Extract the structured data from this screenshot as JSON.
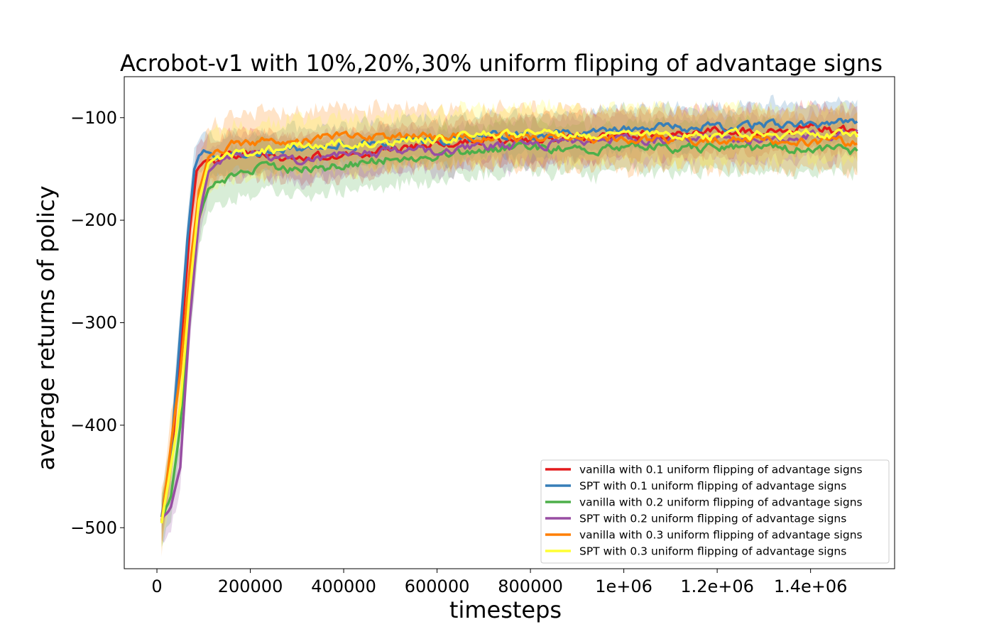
{
  "chart_data": {
    "type": "line",
    "title": "Acrobot-v1 with 10%,20%,30% uniform flipping of advantage signs",
    "xlabel": "timesteps",
    "ylabel": "average returns of policy",
    "xlim": [
      -70000,
      1580000
    ],
    "ylim": [
      -540,
      -60
    ],
    "xticks": [
      0,
      200000,
      400000,
      600000,
      800000,
      1000000,
      1200000,
      1400000
    ],
    "xtick_labels": [
      "0",
      "200000",
      "400000",
      "600000",
      "800000",
      "1e+06",
      "1.2e+06",
      "1.4e+06"
    ],
    "yticks": [
      -500,
      -400,
      -300,
      -200,
      -100
    ],
    "ytick_labels": [
      "−500",
      "−400",
      "−300",
      "−200",
      "−100"
    ],
    "legend_position": "lower-right",
    "grid": false,
    "series": [
      {
        "name": "vanilla with 0.1 uniform flipping of advantage signs",
        "color": "#e41a1c",
        "x": [
          10000,
          30000,
          50000,
          70000,
          85000,
          100000,
          120000,
          150000,
          200000,
          300000,
          400000,
          500000,
          600000,
          700000,
          800000,
          900000,
          1000000,
          1100000,
          1200000,
          1300000,
          1400000,
          1500000
        ],
        "y": [
          -495,
          -440,
          -330,
          -210,
          -152,
          -142,
          -140,
          -137,
          -137,
          -139,
          -137,
          -130,
          -127,
          -122,
          -121,
          -119,
          -117,
          -115,
          -113,
          -113,
          -110,
          -115
        ],
        "band": 22
      },
      {
        "name": "SPT with 0.1 uniform flipping of advantage signs",
        "color": "#377eb8",
        "x": [
          10000,
          30000,
          50000,
          65000,
          80000,
          90000,
          100000,
          120000,
          150000,
          200000,
          300000,
          400000,
          500000,
          600000,
          700000,
          800000,
          900000,
          1000000,
          1100000,
          1200000,
          1300000,
          1400000,
          1500000
        ],
        "y": [
          -490,
          -430,
          -310,
          -220,
          -150,
          -138,
          -133,
          -137,
          -137,
          -133,
          -130,
          -127,
          -125,
          -122,
          -119,
          -117,
          -115,
          -112,
          -110,
          -109,
          -107,
          -105,
          -106
        ],
        "band": 20
      },
      {
        "name": "vanilla with 0.2 uniform flipping of advantage signs",
        "color": "#4daf4a",
        "x": [
          10000,
          30000,
          50000,
          70000,
          90000,
          110000,
          130000,
          160000,
          200000,
          300000,
          400000,
          500000,
          600000,
          700000,
          800000,
          900000,
          1000000,
          1100000,
          1200000,
          1300000,
          1400000,
          1500000
        ],
        "y": [
          -492,
          -470,
          -400,
          -290,
          -200,
          -170,
          -163,
          -158,
          -150,
          -152,
          -147,
          -139,
          -136,
          -131,
          -130,
          -131,
          -128,
          -129,
          -129,
          -130,
          -131,
          -133
        ],
        "band": 24
      },
      {
        "name": "SPT with 0.2 uniform flipping of advantage signs",
        "color": "#984ea3",
        "x": [
          10000,
          30000,
          50000,
          70000,
          90000,
          110000,
          130000,
          160000,
          200000,
          300000,
          400000,
          500000,
          600000,
          700000,
          800000,
          900000,
          1000000,
          1100000,
          1200000,
          1300000,
          1400000,
          1500000
        ],
        "y": [
          -492,
          -480,
          -440,
          -300,
          -200,
          -152,
          -143,
          -140,
          -136,
          -142,
          -135,
          -133,
          -131,
          -129,
          -126,
          -125,
          -123,
          -121,
          -119,
          -120,
          -119,
          -115
        ],
        "band": 22
      },
      {
        "name": "vanilla with 0.3 uniform flipping of advantage signs",
        "color": "#ff7f00",
        "x": [
          10000,
          30000,
          50000,
          70000,
          90000,
          110000,
          130000,
          160000,
          200000,
          300000,
          400000,
          500000,
          600000,
          700000,
          800000,
          900000,
          1000000,
          1100000,
          1200000,
          1300000,
          1400000,
          1500000
        ],
        "y": [
          -495,
          -420,
          -350,
          -250,
          -170,
          -140,
          -132,
          -127,
          -124,
          -122,
          -119,
          -119,
          -119,
          -118,
          -120,
          -120,
          -121,
          -121,
          -122,
          -123,
          -123,
          -124
        ],
        "band": 28
      },
      {
        "name": "SPT with 0.3 uniform flipping of advantage signs",
        "color": "#ffff33",
        "x": [
          10000,
          30000,
          50000,
          70000,
          90000,
          110000,
          130000,
          160000,
          200000,
          300000,
          400000,
          500000,
          600000,
          700000,
          800000,
          900000,
          1000000,
          1100000,
          1200000,
          1300000,
          1400000,
          1500000
        ],
        "y": [
          -495,
          -440,
          -380,
          -270,
          -180,
          -145,
          -137,
          -135,
          -137,
          -127,
          -125,
          -123,
          -120,
          -117,
          -115,
          -117,
          -117,
          -118,
          -118,
          -117,
          -115,
          -118
        ],
        "band": 26
      }
    ]
  }
}
